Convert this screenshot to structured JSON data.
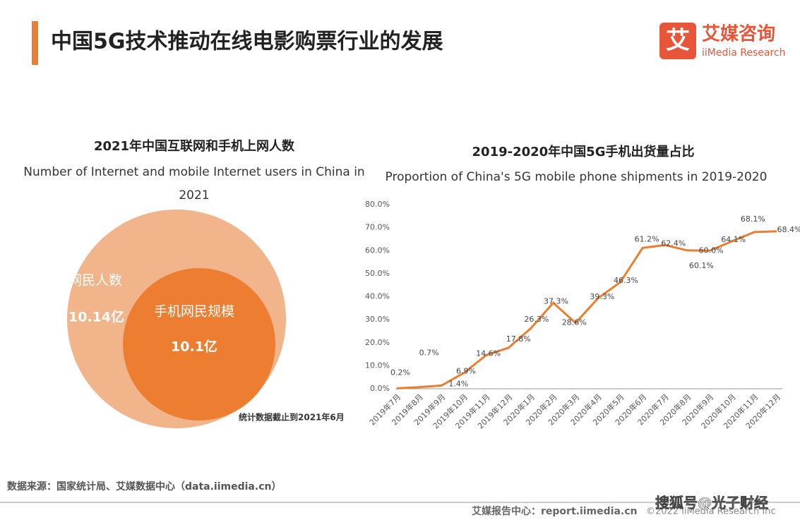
{
  "header": {
    "title": "中国5G技术推动在线电影购票行业的发展",
    "logo_icon": "艾",
    "logo_name": "艾媒咨询",
    "logo_en": "iiMedia Research"
  },
  "chart_data": [
    {
      "type": "venn",
      "title": "2021年中国互联网和手机上网人数",
      "subtitle": "Number of Internet and mobile Internet users in China in 2021",
      "series": [
        {
          "name": "网民人数",
          "values": [
            10.14
          ],
          "value_labels": [
            "10.14亿"
          ],
          "color": "#f2b48a"
        },
        {
          "name": "手机网民规模",
          "values": [
            10.1
          ],
          "value_labels": [
            "10.1亿"
          ],
          "color": "#ed7d31"
        }
      ],
      "note": "统计数据截止到2021年6月"
    },
    {
      "type": "line",
      "title": "2019-2020年中国5G手机出货量占比",
      "subtitle": "Proportion of China's 5G mobile phone shipments in 2019-2020",
      "categories": [
        "2019年7月",
        "2019年8月",
        "2019年9月",
        "2019年10月",
        "2019年11月",
        "2019年12月",
        "2020年1月",
        "2020年2月",
        "2020年3月",
        "2020年4月",
        "2020年5月",
        "2020年6月",
        "2020年7月",
        "2020年8月",
        "2020年9月",
        "2020年10月",
        "2020年11月",
        "2020年12月"
      ],
      "values": [
        0.2,
        0.7,
        1.4,
        6.9,
        14.6,
        17.8,
        26.3,
        37.3,
        28.6,
        39.3,
        46.3,
        61.2,
        62.4,
        60.1,
        60.0,
        64.1,
        68.1,
        68.4
      ],
      "value_labels": [
        "0.2%",
        "0.7%",
        "1.4%",
        "6.9%",
        "14.6%",
        "17.8%",
        "26.3%",
        "37.3%",
        "28.6%",
        "39.3%",
        "46.3%",
        "61.2%",
        "62.4%",
        "60.1%",
        "60.0%",
        "64.1%",
        "68.1%",
        "68.4%"
      ],
      "color": "#ed7d31",
      "ylim": [
        0,
        80
      ],
      "yticks": [
        {
          "value": 0,
          "label": "0.0%"
        },
        {
          "value": 10,
          "label": "10.0%"
        },
        {
          "value": 20,
          "label": "20.0%"
        },
        {
          "value": 30,
          "label": "30.0%"
        },
        {
          "value": 40,
          "label": "40.0%"
        },
        {
          "value": 50,
          "label": "50.0%"
        },
        {
          "value": 60,
          "label": "60.0%"
        },
        {
          "value": 70,
          "label": "70.0%"
        },
        {
          "value": 80,
          "label": "80.0%"
        }
      ]
    }
  ],
  "footer": {
    "source": "数据来源：国家统计局、艾媒数据中心（data.iimedia.cn）",
    "report": "艾媒报告中心：report.iimedia.cn",
    "copyright": "©2022 iiMedia Research Inc",
    "watermark": "搜狐号@光子财经"
  }
}
